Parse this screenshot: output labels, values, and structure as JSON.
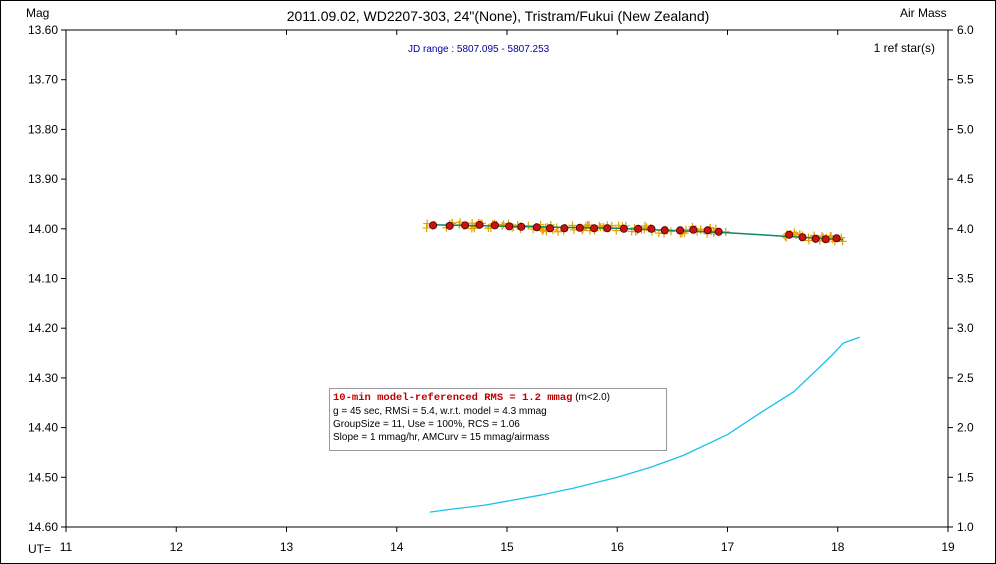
{
  "chart_data": {
    "type": "scatter",
    "title": "2011.09.02, WD2207-303, 24\"(None), Tristram/Fukui (New Zealand)",
    "ylabel_left": "Mag",
    "ylabel_right": "Air Mass",
    "xlabel": "UT=",
    "jd_range": "JD range : 5807.095 - 5807.253",
    "ref_stars": "1 ref star(s)",
    "xlim": [
      11,
      19
    ],
    "ylim_mag": [
      13.6,
      14.6
    ],
    "ylim_airmass": [
      1.0,
      6.0
    ],
    "x_ticks": [
      "11",
      "12",
      "13",
      "14",
      "15",
      "16",
      "17",
      "18",
      "19"
    ],
    "y_ticks_left": [
      "13.60",
      "13.70",
      "13.80",
      "13.90",
      "14.00",
      "14.10",
      "14.20",
      "14.30",
      "14.40",
      "14.50",
      "14.60"
    ],
    "y_ticks_right": [
      "6.0",
      "5.5",
      "5.0",
      "4.5",
      "4.0",
      "3.5",
      "3.0",
      "2.5",
      "2.0",
      "1.5",
      "1.0"
    ],
    "binned_points": {
      "name": "binned",
      "x": [
        14.33,
        14.48,
        14.62,
        14.75,
        14.89,
        15.02,
        15.13,
        15.27,
        15.39,
        15.52,
        15.66,
        15.79,
        15.91,
        16.06,
        16.19,
        16.31,
        16.43,
        16.57,
        16.69,
        16.82,
        16.92,
        17.56,
        17.68,
        17.8,
        17.89,
        17.99
      ],
      "y": [
        13.993,
        13.994,
        13.993,
        13.992,
        13.993,
        13.995,
        13.996,
        13.997,
        13.999,
        13.999,
        13.998,
        13.999,
        13.999,
        14.0,
        14.0,
        14.0,
        14.003,
        14.003,
        14.002,
        14.003,
        14.006,
        14.012,
        14.017,
        14.02,
        14.021,
        14.019
      ]
    },
    "model_line": {
      "name": "model",
      "x": [
        14.3,
        15.0,
        16.0,
        17.0,
        18.05
      ],
      "y": [
        13.992,
        13.995,
        13.999,
        14.008,
        14.022
      ]
    },
    "airmass_curve": {
      "name": "Air Mass",
      "x": [
        14.3,
        14.5,
        14.8,
        15.0,
        15.3,
        15.6,
        16.0,
        16.3,
        16.6,
        17.0,
        17.3,
        17.6,
        17.8,
        17.95,
        18.05,
        18.2
      ],
      "y": [
        1.15,
        1.18,
        1.22,
        1.26,
        1.32,
        1.39,
        1.5,
        1.6,
        1.72,
        1.93,
        2.15,
        2.36,
        2.57,
        2.73,
        2.85,
        2.91
      ]
    },
    "colors": {
      "raw_points": "#e8a000",
      "binned_fill": "#cc1111",
      "model_line": "#0a8a60",
      "airmass": "#19c3e8",
      "highlight": "#c00000"
    }
  },
  "info": {
    "line1_highlight": "10-min model-referenced RMS = 1.2 mmag",
    "line1_suffix": " (m<2.0)",
    "line2": "g = 45 sec, RMSi = 5.4, w.r.t. model = 4.3 mmag",
    "line3": "GroupSize = 11, Use = 100%, RCS = 1.06",
    "line4": "Slope = 1 mmag/hr, AMCurv = 15 mmag/airmass"
  }
}
